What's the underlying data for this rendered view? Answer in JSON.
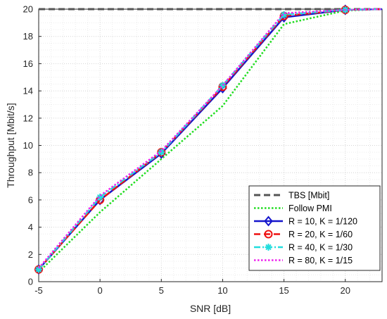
{
  "chart_data": {
    "type": "line",
    "xlabel": "SNR [dB]",
    "ylabel": "Throughput [Mbit/s]",
    "xlim": [
      -5,
      23
    ],
    "ylim": [
      0,
      20
    ],
    "xticks": [
      -5,
      0,
      5,
      10,
      15,
      20
    ],
    "yticks": [
      0,
      2,
      4,
      6,
      8,
      10,
      12,
      14,
      16,
      18,
      20
    ],
    "grid": "major and minor, dotted",
    "legend_position": "bottom-right",
    "series": [
      {
        "name": "TBS [Mbit]",
        "color": "#555555",
        "style": "dashed",
        "marker": "none",
        "x": [
          -5,
          23
        ],
        "y": [
          20,
          20
        ]
      },
      {
        "name": "Follow PMI",
        "color": "#22dd22",
        "style": "dotted",
        "marker": "none",
        "x": [
          -5,
          0,
          5,
          10,
          15,
          20,
          23
        ],
        "y": [
          0.7,
          5.1,
          9.0,
          12.9,
          18.9,
          19.9,
          20.0
        ]
      },
      {
        "name": "R = 10, K = 1/120",
        "color": "#1515cc",
        "style": "solid",
        "marker": "diamond",
        "x": [
          -5,
          0,
          5,
          10,
          15,
          20,
          23
        ],
        "y": [
          0.9,
          6.0,
          9.4,
          14.2,
          19.4,
          19.95,
          20.0
        ]
      },
      {
        "name": "R = 20, K = 1/60",
        "color": "#ee1111",
        "style": "dashed",
        "marker": "circle",
        "x": [
          -5,
          0,
          5,
          10,
          15,
          20,
          23
        ],
        "y": [
          0.9,
          6.0,
          9.5,
          14.3,
          19.5,
          19.95,
          20.0
        ]
      },
      {
        "name": "R = 40, K = 1/30",
        "color": "#22dddd",
        "style": "dashdot",
        "marker": "asterisk",
        "x": [
          -5,
          0,
          5,
          10,
          15,
          20,
          23
        ],
        "y": [
          0.9,
          6.2,
          9.5,
          14.4,
          19.6,
          19.95,
          20.0
        ]
      },
      {
        "name": "R = 80, K = 1/15",
        "color": "#ee22ee",
        "style": "dotted",
        "marker": "none",
        "x": [
          -5,
          0,
          5,
          10,
          15,
          20,
          23
        ],
        "y": [
          1.0,
          6.3,
          9.6,
          14.4,
          19.7,
          19.95,
          20.0
        ]
      }
    ]
  }
}
